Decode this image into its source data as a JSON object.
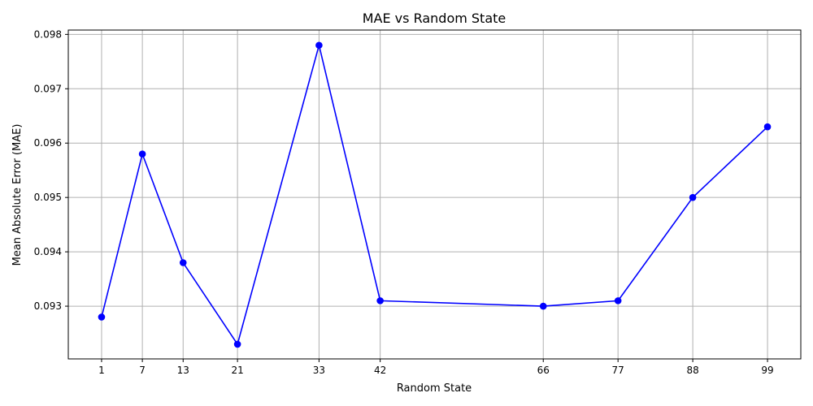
{
  "chart_data": {
    "type": "line",
    "title": "MAE vs Random State",
    "xlabel": "Random State",
    "ylabel": "Mean Absolute Error (MAE)",
    "x": [
      1,
      7,
      13,
      21,
      33,
      42,
      66,
      77,
      88,
      99
    ],
    "xticks": [
      "1",
      "7",
      "13",
      "21",
      "33",
      "42",
      "66",
      "77",
      "88",
      "99"
    ],
    "y": [
      0.0928,
      0.0958,
      0.0938,
      0.0923,
      0.0978,
      0.0931,
      0.093,
      0.0931,
      0.095,
      0.0963
    ],
    "yticks": [
      "0.093",
      "0.094",
      "0.095",
      "0.096",
      "0.097",
      "0.098"
    ],
    "ytick_values": [
      0.093,
      0.094,
      0.095,
      0.096,
      0.097,
      0.098
    ],
    "xlim": [
      -3.9,
      103.9
    ],
    "ylim": [
      0.09203,
      0.09808
    ],
    "grid": true,
    "marker": "circle",
    "color": "#0000ff"
  }
}
